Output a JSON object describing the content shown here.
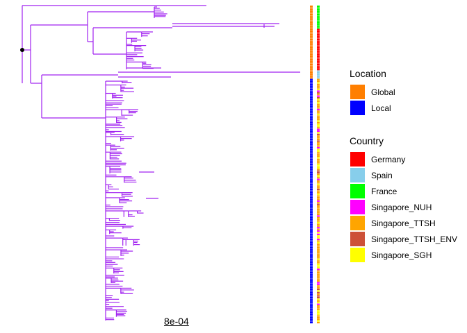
{
  "colors": {
    "branch": "#a020f0",
    "root_node": "#000000"
  },
  "legends": {
    "location": {
      "title": "Location",
      "items": [
        {
          "label": "Global",
          "color": "#ff7f00"
        },
        {
          "label": "Local",
          "color": "#0000ff"
        }
      ]
    },
    "country": {
      "title": "Country",
      "items": [
        {
          "label": "Germany",
          "color": "#ff0000"
        },
        {
          "label": "Spain",
          "color": "#87ceeb"
        },
        {
          "label": "France",
          "color": "#00ff00"
        },
        {
          "label": "Singapore_NUH",
          "color": "#ff00ff"
        },
        {
          "label": "Singapore_TTSH",
          "color": "#ffa500"
        },
        {
          "label": "Singapore_TTSH_ENV",
          "color": "#cd5138"
        },
        {
          "label": "Singapore_SGH",
          "color": "#ffff00"
        }
      ]
    }
  },
  "scale_bar": {
    "label": "8e-04"
  }
}
